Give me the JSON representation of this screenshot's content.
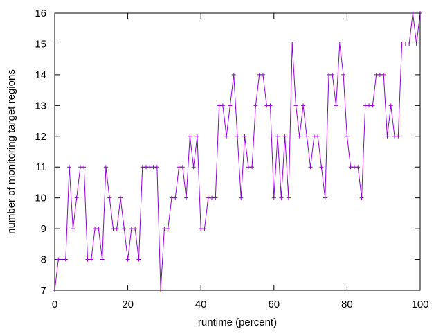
{
  "chart_data": {
    "type": "line",
    "title": "",
    "xlabel": "runtime (percent)",
    "ylabel": "number of monitoring target regions",
    "xlim": [
      0,
      100
    ],
    "ylim": [
      7,
      16
    ],
    "xticks": [
      0,
      20,
      40,
      60,
      80,
      100
    ],
    "yticks": [
      7,
      8,
      9,
      10,
      11,
      12,
      13,
      14,
      15,
      16
    ],
    "grid": false,
    "legend": "none",
    "series": [
      {
        "color": "#9400d3",
        "marker": "plus",
        "x": [
          0,
          1,
          2,
          3,
          4,
          5,
          6,
          7,
          8,
          9,
          10,
          11,
          12,
          13,
          14,
          15,
          16,
          17,
          18,
          19,
          20,
          21,
          22,
          23,
          24,
          25,
          26,
          27,
          28,
          29,
          30,
          31,
          32,
          33,
          34,
          35,
          36,
          37,
          38,
          39,
          40,
          41,
          42,
          43,
          44,
          45,
          46,
          47,
          48,
          49,
          50,
          51,
          52,
          53,
          54,
          55,
          56,
          57,
          58,
          59,
          60,
          61,
          62,
          63,
          64,
          65,
          66,
          67,
          68,
          69,
          70,
          71,
          72,
          73,
          74,
          75,
          76,
          77,
          78,
          79,
          80,
          81,
          82,
          83,
          84,
          85,
          86,
          87,
          88,
          89,
          90,
          91,
          92,
          93,
          94,
          95,
          96,
          97,
          98,
          99,
          100
        ],
        "y": [
          7,
          8,
          8,
          8,
          11,
          9,
          10,
          11,
          11,
          8,
          8,
          9,
          9,
          8,
          11,
          10,
          9,
          9,
          10,
          9,
          8,
          9,
          9,
          8,
          11,
          11,
          11,
          11,
          11,
          7,
          9,
          9,
          10,
          10,
          11,
          11,
          10,
          12,
          11,
          12,
          9,
          9,
          10,
          10,
          10,
          13,
          13,
          12,
          13,
          14,
          12,
          10,
          12,
          11,
          11,
          13,
          14,
          14,
          13,
          13,
          10,
          12,
          10,
          12,
          10,
          15,
          13,
          12,
          13,
          12,
          11,
          12,
          12,
          11,
          10,
          14,
          14,
          13,
          15,
          14,
          12,
          11,
          11,
          11,
          10,
          13,
          13,
          13,
          14,
          14,
          14,
          12,
          13,
          12,
          12,
          15,
          15,
          15,
          16,
          15,
          16
        ]
      }
    ]
  }
}
